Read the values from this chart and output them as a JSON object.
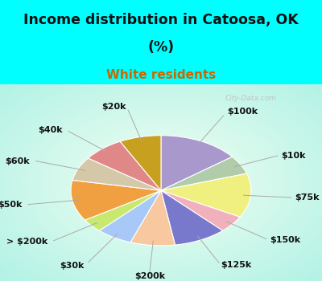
{
  "title_line1": "Income distribution in Catoosa, OK",
  "title_line2": "(%)",
  "subtitle": "White residents",
  "title_color": "#111111",
  "subtitle_color": "#cc6600",
  "background_cyan": "#00ffff",
  "labels": [
    "$100k",
    "$10k",
    "$75k",
    "$150k",
    "$125k",
    "$200k",
    "$30k",
    "> $200k",
    "$50k",
    "$60k",
    "$40k",
    "$20k"
  ],
  "values": [
    14.5,
    5.5,
    13.0,
    5.0,
    9.5,
    8.0,
    6.5,
    4.0,
    12.0,
    7.0,
    7.5,
    7.5
  ],
  "colors": [
    "#a898cc",
    "#b0ccaa",
    "#f0f080",
    "#f0b0bc",
    "#7878cc",
    "#f8c8a0",
    "#a8c8f8",
    "#c8e870",
    "#f0a040",
    "#d4c8a8",
    "#e08888",
    "#c8a020"
  ],
  "startangle": 90,
  "label_fontsize": 8,
  "label_color": "#111111",
  "title_fontsize": 12.5,
  "subtitle_fontsize": 11,
  "watermark": "City-Data.com"
}
